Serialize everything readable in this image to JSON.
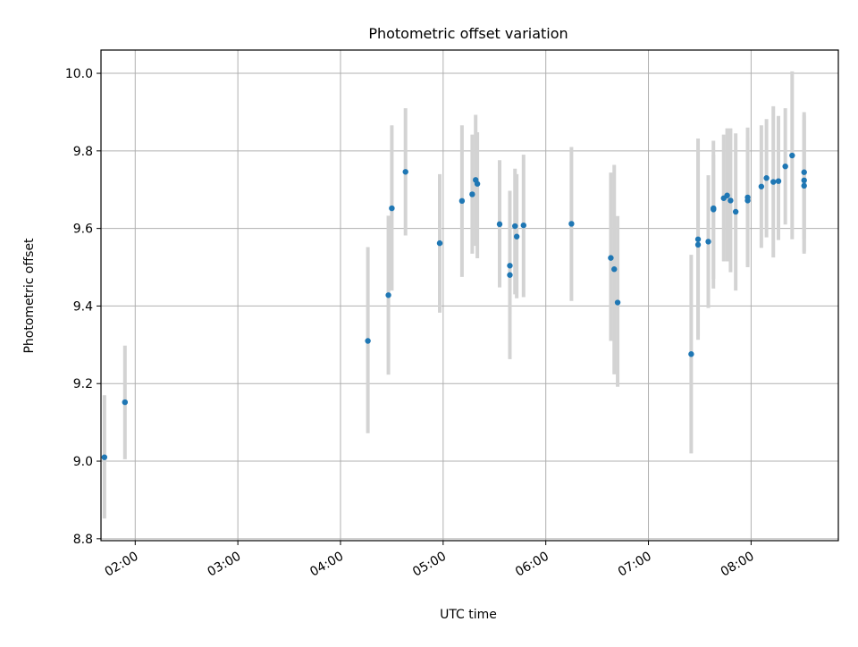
{
  "chart_data": {
    "type": "scatter",
    "title": "Photometric offset variation",
    "xlabel": "UTC time",
    "ylabel": "Photometric offset",
    "x_ticks": [
      "02:00",
      "03:00",
      "04:00",
      "05:00",
      "06:00",
      "07:00",
      "08:00"
    ],
    "y_ticks": [
      "8.8",
      "9.0",
      "9.2",
      "9.4",
      "9.6",
      "9.8",
      "10.0"
    ],
    "xlim": [
      "01:40",
      "08:51"
    ],
    "ylim": [
      8.795,
      10.06
    ],
    "grid": true,
    "colors": {
      "points": "#1f77b4",
      "error_bars": "#d3d3d3",
      "grid": "#b0b0b0"
    },
    "points": [
      {
        "x": "01:42",
        "y": 9.01,
        "err_low": 8.852,
        "err_high": 9.17
      },
      {
        "x": "01:54",
        "y": 9.152,
        "err_low": 9.005,
        "err_high": 9.298
      },
      {
        "x": "04:16",
        "y": 9.31,
        "err_low": 9.072,
        "err_high": 9.552
      },
      {
        "x": "04:28",
        "y": 9.428,
        "err_low": 9.223,
        "err_high": 9.633
      },
      {
        "x": "04:30",
        "y": 9.652,
        "err_low": 9.44,
        "err_high": 9.866
      },
      {
        "x": "04:38",
        "y": 9.746,
        "err_low": 9.582,
        "err_high": 9.91
      },
      {
        "x": "04:58",
        "y": 9.562,
        "err_low": 9.383,
        "err_high": 9.74
      },
      {
        "x": "05:11",
        "y": 9.671,
        "err_low": 9.475,
        "err_high": 9.866
      },
      {
        "x": "05:17",
        "y": 9.688,
        "err_low": 9.535,
        "err_high": 9.842
      },
      {
        "x": "05:19",
        "y": 9.725,
        "err_low": 9.555,
        "err_high": 9.893
      },
      {
        "x": "05:20",
        "y": 9.715,
        "err_low": 9.523,
        "err_high": 9.848
      },
      {
        "x": "05:33",
        "y": 9.611,
        "err_low": 9.448,
        "err_high": 9.776
      },
      {
        "x": "05:39",
        "y": 9.504,
        "err_low": 9.38,
        "err_high": 9.63
      },
      {
        "x": "05:39",
        "y": 9.48,
        "err_low": 9.263,
        "err_high": 9.697
      },
      {
        "x": "05:42",
        "y": 9.606,
        "err_low": 9.43,
        "err_high": 9.754
      },
      {
        "x": "05:43",
        "y": 9.579,
        "err_low": 9.42,
        "err_high": 9.74
      },
      {
        "x": "05:47",
        "y": 9.608,
        "err_low": 9.423,
        "err_high": 9.79
      },
      {
        "x": "06:15",
        "y": 9.612,
        "err_low": 9.413,
        "err_high": 9.81
      },
      {
        "x": "06:38",
        "y": 9.524,
        "err_low": 9.31,
        "err_high": 9.744
      },
      {
        "x": "06:40",
        "y": 9.495,
        "err_low": 9.224,
        "err_high": 9.764
      },
      {
        "x": "06:42",
        "y": 9.409,
        "err_low": 9.192,
        "err_high": 9.632
      },
      {
        "x": "07:25",
        "y": 9.276,
        "err_low": 9.02,
        "err_high": 9.532
      },
      {
        "x": "07:29",
        "y": 9.572,
        "err_low": 9.323,
        "err_high": 9.832
      },
      {
        "x": "07:29",
        "y": 9.558,
        "err_low": 9.313,
        "err_high": 9.8
      },
      {
        "x": "07:35",
        "y": 9.566,
        "err_low": 9.395,
        "err_high": 9.737
      },
      {
        "x": "07:38",
        "y": 9.649,
        "err_low": 9.47,
        "err_high": 9.826
      },
      {
        "x": "07:38",
        "y": 9.652,
        "err_low": 9.445,
        "err_high": 9.79
      },
      {
        "x": "07:44",
        "y": 9.678,
        "err_low": 9.515,
        "err_high": 9.842
      },
      {
        "x": "07:46",
        "y": 9.685,
        "err_low": 9.515,
        "err_high": 9.858
      },
      {
        "x": "07:48",
        "y": 9.672,
        "err_low": 9.487,
        "err_high": 9.858
      },
      {
        "x": "07:51",
        "y": 9.643,
        "err_low": 9.44,
        "err_high": 9.845
      },
      {
        "x": "07:58",
        "y": 9.68,
        "err_low": 9.5,
        "err_high": 9.86
      },
      {
        "x": "07:58",
        "y": 9.672,
        "err_low": 9.505,
        "err_high": 9.835
      },
      {
        "x": "08:06",
        "y": 9.708,
        "err_low": 9.55,
        "err_high": 9.866
      },
      {
        "x": "08:09",
        "y": 9.73,
        "err_low": 9.577,
        "err_high": 9.882
      },
      {
        "x": "08:13",
        "y": 9.72,
        "err_low": 9.525,
        "err_high": 9.915
      },
      {
        "x": "08:16",
        "y": 9.722,
        "err_low": 9.57,
        "err_high": 9.89
      },
      {
        "x": "08:20",
        "y": 9.76,
        "err_low": 9.61,
        "err_high": 9.91
      },
      {
        "x": "08:24",
        "y": 9.788,
        "err_low": 9.572,
        "err_high": 10.005
      },
      {
        "x": "08:31",
        "y": 9.745,
        "err_low": 9.573,
        "err_high": 9.9
      },
      {
        "x": "08:31",
        "y": 9.724,
        "err_low": 9.535,
        "err_high": 9.893
      },
      {
        "x": "08:31",
        "y": 9.71,
        "err_low": 9.54,
        "err_high": 9.88
      }
    ]
  }
}
